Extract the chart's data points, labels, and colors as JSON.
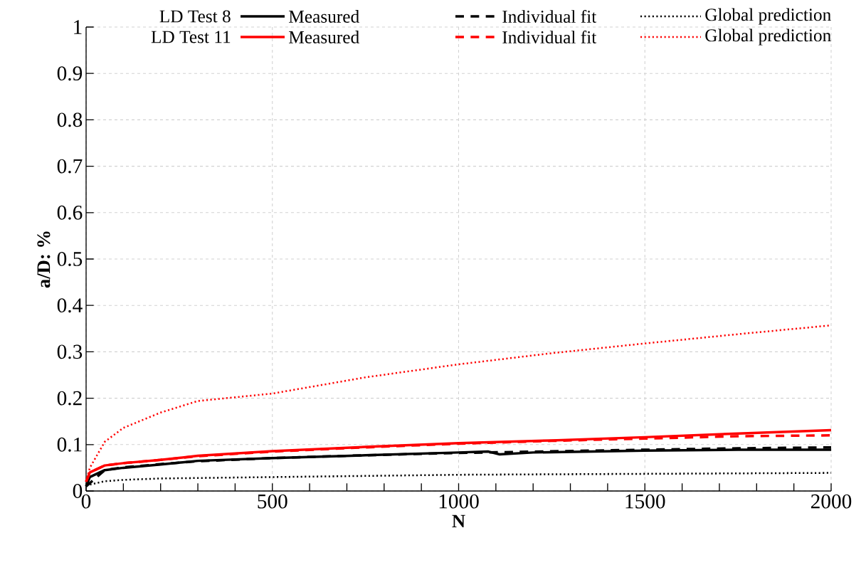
{
  "chart_data": {
    "type": "line",
    "xlabel": "N",
    "ylabel": "a/D: %",
    "xlim": [
      0,
      2000
    ],
    "xticks": [
      0,
      500,
      1000,
      1500,
      2000
    ],
    "ylim": [
      0,
      1
    ],
    "yticks": [
      0,
      0.1,
      0.2,
      0.3,
      0.4,
      0.5,
      0.6,
      0.7,
      0.8,
      0.9,
      1
    ],
    "grid": true,
    "legend": "top right",
    "annotations": [
      "LD Test 8",
      "LD Test 11"
    ],
    "series": [
      {
        "name": "Measured",
        "color": "#000000",
        "line_style": "solid",
        "x": [
          0,
          10,
          50,
          100,
          200,
          300,
          500,
          750,
          1000,
          1080,
          1110,
          1200,
          1500,
          1750,
          2000
        ],
        "values": [
          0.01,
          0.03,
          0.045,
          0.05,
          0.057,
          0.065,
          0.071,
          0.077,
          0.083,
          0.085,
          0.079,
          0.083,
          0.087,
          0.089,
          0.089
        ]
      },
      {
        "name": "Individual fit",
        "color": "#000000",
        "line_style": "dashed",
        "x": [
          0,
          50,
          100,
          200,
          300,
          500,
          750,
          1000,
          1500,
          1750,
          2000
        ],
        "values": [
          0.01,
          0.045,
          0.051,
          0.058,
          0.064,
          0.071,
          0.077,
          0.082,
          0.089,
          0.092,
          0.094
        ]
      },
      {
        "name": "Global prediction",
        "color": "#000000",
        "line_style": "dotted",
        "x": [
          0,
          50,
          100,
          200,
          500,
          1000,
          1500,
          2000
        ],
        "values": [
          0.012,
          0.021,
          0.024,
          0.027,
          0.03,
          0.035,
          0.037,
          0.039
        ]
      },
      {
        "name": "Measured",
        "color": "#ff0000",
        "line_style": "solid",
        "x": [
          0,
          10,
          50,
          100,
          200,
          300,
          500,
          750,
          1000,
          1250,
          1500,
          1750,
          2000
        ],
        "values": [
          0.02,
          0.04,
          0.055,
          0.06,
          0.067,
          0.076,
          0.086,
          0.095,
          0.103,
          0.109,
          0.116,
          0.124,
          0.131
        ]
      },
      {
        "name": "Individual fit",
        "color": "#ff0000",
        "line_style": "dashed",
        "x": [
          0,
          10,
          50,
          100,
          200,
          300,
          500,
          750,
          1000,
          1250,
          1500,
          1750,
          2000
        ],
        "values": [
          0.02,
          0.04,
          0.055,
          0.06,
          0.067,
          0.075,
          0.085,
          0.094,
          0.102,
          0.108,
          0.113,
          0.118,
          0.12
        ]
      },
      {
        "name": "Global prediction",
        "color": "#ff0000",
        "line_style": "dotted",
        "x": [
          0,
          10,
          50,
          100,
          200,
          300,
          500,
          750,
          1000,
          1250,
          1500,
          1750,
          2000
        ],
        "values": [
          0.02,
          0.05,
          0.106,
          0.136,
          0.169,
          0.194,
          0.21,
          0.245,
          0.273,
          0.297,
          0.318,
          0.338,
          0.357
        ]
      }
    ]
  }
}
